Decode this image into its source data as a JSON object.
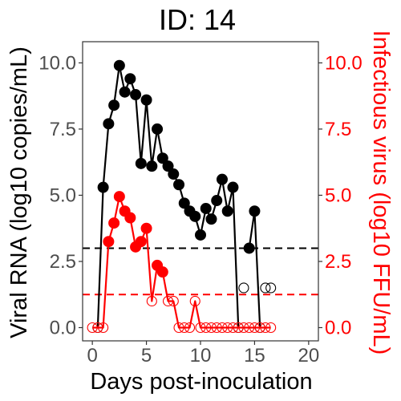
{
  "chart_data": {
    "type": "line",
    "title": "ID: 14",
    "xlabel": "Days post-inoculation",
    "ylabel_left": "Viral RNA (log10 copies/mL)",
    "ylabel_right": "Infectious virus (log10 FFU/mL)",
    "xlim": [
      -0.9,
      20.9
    ],
    "ylim": [
      -0.5,
      10.8
    ],
    "x_ticks": [
      0,
      5,
      10,
      15,
      20
    ],
    "y_ticks_left": [
      0.0,
      2.5,
      5.0,
      7.5,
      10.0
    ],
    "y_tick_labels_left": [
      "0.0",
      "2.5",
      "5.0",
      "7.5",
      "10.0"
    ],
    "y_ticks_right": [
      0.0,
      2.5,
      5.0,
      7.5,
      10.0
    ],
    "y_tick_labels_right": [
      "0.0",
      "2.5",
      "5.0",
      "7.5",
      "10.0"
    ],
    "grid": false,
    "colors": {
      "rna": "#000000",
      "infectious": "#ff0000",
      "axis": "#333333",
      "tick_text": "#4d4d4d"
    },
    "reference_lines": [
      {
        "series": "rna",
        "y": 3.0,
        "style": "dashed"
      },
      {
        "series": "infectious",
        "y": 1.25,
        "style": "dashed"
      }
    ],
    "series": [
      {
        "key": "rna",
        "axis": "left",
        "color": "#000000",
        "x": [
          0.5,
          1,
          1.5,
          2,
          2.5,
          3,
          3.5,
          4,
          4.5,
          5,
          5.5,
          6,
          6.5,
          7,
          7.5,
          8,
          8.5,
          9,
          9.5,
          10,
          10.5,
          11,
          11.5,
          12,
          12.5,
          13,
          13.5,
          14,
          14.5,
          15,
          15.5,
          16,
          16.5
        ],
        "y": [
          0.0,
          5.3,
          7.7,
          8.4,
          9.9,
          8.9,
          9.4,
          8.8,
          6.2,
          8.6,
          6.1,
          7.5,
          6.4,
          6.1,
          5.8,
          5.4,
          4.7,
          4.4,
          4.2,
          3.5,
          4.5,
          4.1,
          4.8,
          5.6,
          4.4,
          5.3,
          0.0,
          1.5,
          3.0,
          4.4,
          0.0,
          1.5,
          1.5
        ],
        "detected": [
          false,
          true,
          true,
          true,
          true,
          true,
          true,
          true,
          true,
          true,
          true,
          true,
          true,
          true,
          true,
          true,
          true,
          true,
          true,
          true,
          true,
          true,
          true,
          true,
          true,
          true,
          false,
          false,
          true,
          true,
          false,
          false,
          false
        ],
        "connected": [
          true,
          true,
          true,
          true,
          true,
          true,
          true,
          true,
          true,
          true,
          true,
          true,
          true,
          true,
          true,
          true,
          true,
          true,
          true,
          true,
          true,
          true,
          true,
          true,
          true,
          true,
          true,
          false,
          true,
          true,
          true,
          false,
          false
        ]
      },
      {
        "key": "infectious",
        "axis": "right",
        "color": "#ff0000",
        "x": [
          0,
          0.5,
          1,
          1.5,
          2,
          2.5,
          3,
          3.5,
          4,
          4.5,
          5,
          5.5,
          6,
          6.5,
          7,
          7.5,
          8,
          8.5,
          9,
          9.5,
          10,
          10.5,
          11,
          11.5,
          12,
          12.5,
          13,
          13.5,
          14,
          14.5,
          15,
          15.5,
          16,
          16.5
        ],
        "y": [
          0.0,
          0.0,
          0.0,
          3.25,
          3.95,
          4.95,
          4.4,
          4.15,
          3.05,
          3.25,
          3.75,
          1.0,
          2.35,
          2.1,
          1.0,
          1.0,
          0.0,
          0.0,
          0.0,
          1.0,
          0.0,
          0.0,
          0.0,
          0.0,
          0.0,
          0.0,
          0.0,
          0.0,
          0.0,
          0.0,
          0.0,
          0.0,
          0.0,
          0.0
        ],
        "detected": [
          false,
          false,
          false,
          true,
          true,
          true,
          true,
          true,
          true,
          true,
          true,
          false,
          true,
          true,
          false,
          false,
          false,
          false,
          false,
          false,
          false,
          false,
          false,
          false,
          false,
          false,
          false,
          false,
          false,
          false,
          false,
          false,
          false,
          false
        ],
        "connected": [
          true,
          true,
          true,
          true,
          true,
          true,
          true,
          true,
          true,
          true,
          true,
          true,
          true,
          true,
          true,
          true,
          true,
          true,
          true,
          true,
          true,
          true,
          true,
          true,
          true,
          true,
          true,
          true,
          true,
          true,
          true,
          true,
          true,
          true
        ]
      }
    ]
  }
}
